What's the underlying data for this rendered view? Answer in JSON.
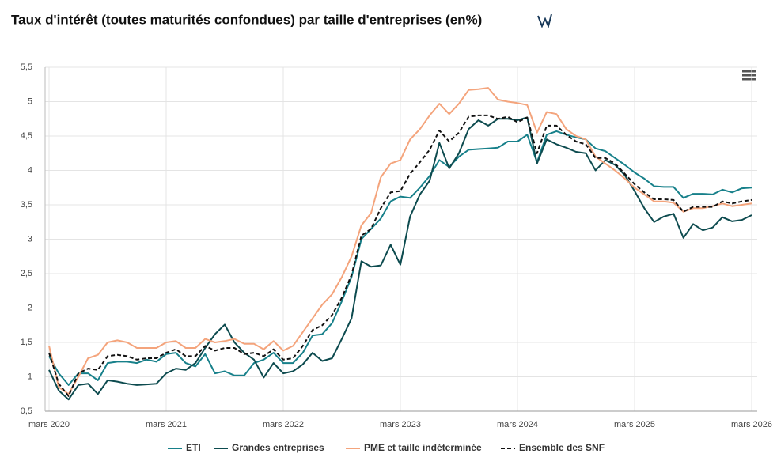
{
  "chart_data": {
    "type": "line",
    "title": "Taux d'intérêt (toutes maturités confondues) par taille d'entreprises (en%)",
    "categories": [
      "mars 2020",
      null,
      null,
      null,
      null,
      null,
      null,
      null,
      null,
      null,
      null,
      null,
      "mars 2021",
      null,
      null,
      null,
      null,
      null,
      null,
      null,
      null,
      null,
      null,
      null,
      "mars 2022",
      null,
      null,
      null,
      null,
      null,
      null,
      null,
      null,
      null,
      null,
      null,
      "mars 2023",
      null,
      null,
      null,
      null,
      null,
      null,
      null,
      null,
      null,
      null,
      null,
      "mars 2024",
      null,
      null,
      null,
      null,
      null,
      null,
      null,
      null,
      null,
      null,
      null,
      "mars 2025",
      null,
      null,
      null,
      null,
      null,
      null,
      null,
      null,
      null,
      null,
      null,
      "mars 2026"
    ],
    "ylim": [
      0.5,
      5.5
    ],
    "yticks": [
      {
        "value": 0.5,
        "label": "0,5"
      },
      1,
      {
        "value": 1.5,
        "label": "1,5"
      },
      2,
      {
        "value": 2.5,
        "label": "2,5"
      },
      3,
      {
        "value": 3.5,
        "label": "3,5"
      },
      4,
      {
        "value": 4.5,
        "label": "4,5"
      },
      5,
      {
        "value": 5.5,
        "label": "5,5"
      }
    ],
    "grid": true,
    "legend": "bottom",
    "series": [
      {
        "name": "ETI",
        "color": "#17808a",
        "values": [
          1.3,
          1.05,
          0.88,
          1.05,
          1.05,
          0.95,
          1.2,
          1.22,
          1.22,
          1.2,
          1.25,
          1.22,
          1.33,
          1.35,
          1.2,
          1.15,
          1.33,
          1.05,
          1.08,
          1.02,
          1.02,
          1.2,
          1.25,
          1.35,
          1.2,
          1.2,
          1.35,
          1.6,
          1.62,
          1.78,
          2.1,
          2.45,
          3.0,
          3.15,
          3.3,
          3.55,
          3.62,
          3.6,
          3.75,
          3.92,
          4.15,
          4.05,
          4.2,
          4.3,
          4.31,
          4.32,
          4.33,
          4.42,
          4.42,
          4.52,
          4.12,
          4.52,
          4.57,
          4.52,
          4.48,
          4.45,
          4.32,
          4.28,
          4.18,
          4.08,
          3.97,
          3.88,
          3.77,
          3.76,
          3.76,
          3.6,
          3.66,
          3.66,
          3.65,
          3.72,
          3.68,
          3.74,
          3.75
        ]
      },
      {
        "name": "Grandes entreprises",
        "color": "#0d4b4f",
        "values": [
          1.1,
          0.8,
          0.67,
          0.88,
          0.9,
          0.75,
          0.95,
          0.93,
          0.9,
          0.88,
          0.89,
          0.9,
          1.05,
          1.12,
          1.1,
          1.2,
          1.42,
          1.62,
          1.76,
          1.5,
          1.35,
          1.25,
          0.99,
          1.2,
          1.05,
          1.08,
          1.18,
          1.35,
          1.23,
          1.27,
          1.55,
          1.85,
          2.68,
          2.6,
          2.62,
          2.92,
          2.63,
          3.33,
          3.65,
          3.85,
          4.4,
          4.03,
          4.25,
          4.6,
          4.73,
          4.65,
          4.75,
          4.75,
          4.73,
          4.77,
          4.1,
          4.45,
          4.38,
          4.33,
          4.27,
          4.25,
          4.0,
          4.15,
          4.08,
          3.93,
          3.7,
          3.45,
          3.25,
          3.33,
          3.37,
          3.02,
          3.22,
          3.13,
          3.17,
          3.32,
          3.26,
          3.28,
          3.35
        ]
      },
      {
        "name": "PME et taille indéterminée",
        "color": "#f4a47c",
        "values": [
          1.45,
          0.85,
          0.75,
          1.0,
          1.27,
          1.32,
          1.5,
          1.53,
          1.5,
          1.42,
          1.42,
          1.42,
          1.5,
          1.52,
          1.42,
          1.42,
          1.55,
          1.5,
          1.52,
          1.55,
          1.48,
          1.48,
          1.4,
          1.52,
          1.38,
          1.45,
          1.65,
          1.85,
          2.05,
          2.2,
          2.45,
          2.75,
          3.2,
          3.38,
          3.9,
          4.1,
          4.15,
          4.45,
          4.6,
          4.8,
          4.97,
          4.82,
          4.97,
          5.17,
          5.18,
          5.2,
          5.03,
          5.0,
          4.98,
          4.95,
          4.55,
          4.85,
          4.82,
          4.6,
          4.5,
          4.45,
          4.2,
          4.1,
          4.0,
          3.88,
          3.75,
          3.65,
          3.55,
          3.55,
          3.53,
          3.4,
          3.45,
          3.45,
          3.48,
          3.52,
          3.48,
          3.5,
          3.52
        ]
      },
      {
        "name": "Ensemble des SNF",
        "color": "#111111",
        "dashed": true,
        "values": [
          1.35,
          0.9,
          0.72,
          1.05,
          1.12,
          1.1,
          1.3,
          1.32,
          1.3,
          1.25,
          1.27,
          1.27,
          1.35,
          1.4,
          1.3,
          1.3,
          1.45,
          1.38,
          1.42,
          1.42,
          1.33,
          1.35,
          1.3,
          1.4,
          1.25,
          1.27,
          1.45,
          1.68,
          1.75,
          1.9,
          2.15,
          2.48,
          3.05,
          3.15,
          3.45,
          3.68,
          3.7,
          3.95,
          4.12,
          4.3,
          4.58,
          4.42,
          4.55,
          4.78,
          4.8,
          4.8,
          4.75,
          4.78,
          4.7,
          4.77,
          4.25,
          4.65,
          4.65,
          4.52,
          4.42,
          4.38,
          4.18,
          4.18,
          4.1,
          3.95,
          3.8,
          3.68,
          3.58,
          3.58,
          3.57,
          3.4,
          3.47,
          3.47,
          3.47,
          3.55,
          3.52,
          3.55,
          3.57
        ]
      }
    ]
  }
}
